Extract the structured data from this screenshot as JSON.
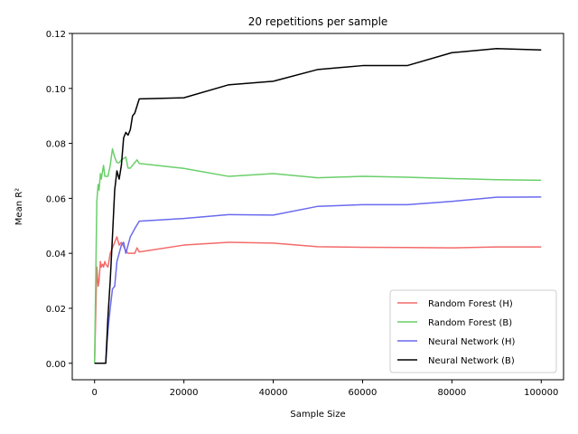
{
  "chart_data": {
    "type": "line",
    "title": "20 repetitions per sample",
    "xlabel": "Sample Size",
    "ylabel": "Mean R²",
    "xlim": [
      -5000,
      105000
    ],
    "ylim": [
      -0.006,
      0.12
    ],
    "xticks": [
      0,
      20000,
      40000,
      60000,
      80000,
      100000
    ],
    "xtick_labels": [
      "0",
      "20000",
      "40000",
      "60000",
      "80000",
      "100000"
    ],
    "yticks": [
      0.0,
      0.02,
      0.04,
      0.06,
      0.08,
      0.1,
      0.12
    ],
    "ytick_labels": [
      "0.00",
      "0.02",
      "0.04",
      "0.06",
      "0.08",
      "0.10",
      "0.12"
    ],
    "grid": false,
    "legend_position": "lower-right",
    "series": [
      {
        "name": "Random Forest (H)",
        "color": "#f46a6a",
        "x": [
          0,
          500,
          800,
          1000,
          1300,
          1500,
          1800,
          2000,
          2300,
          2500,
          3000,
          3500,
          4000,
          4500,
          5000,
          5500,
          6000,
          7000,
          7500,
          8000,
          9000,
          9500,
          10000,
          20000,
          30000,
          40000,
          50000,
          60000,
          70000,
          80000,
          90000,
          100000
        ],
        "y": [
          0.0,
          0.035,
          0.028,
          0.03,
          0.037,
          0.035,
          0.036,
          0.035,
          0.037,
          0.036,
          0.035,
          0.04,
          0.042,
          0.044,
          0.046,
          0.043,
          0.044,
          0.041,
          0.04,
          0.04,
          0.04,
          0.042,
          0.0405,
          0.043,
          0.044,
          0.0437,
          0.0424,
          0.0422,
          0.0421,
          0.042,
          0.0423,
          0.0423
        ]
      },
      {
        "name": "Random Forest (B)",
        "color": "#6acf6a",
        "x": [
          0,
          500,
          800,
          1000,
          1300,
          1500,
          1800,
          2000,
          2300,
          2500,
          3000,
          3500,
          4000,
          4500,
          5000,
          5500,
          6000,
          7000,
          7500,
          8000,
          9000,
          9500,
          10000,
          20000,
          30000,
          40000,
          50000,
          60000,
          70000,
          80000,
          90000,
          100000
        ],
        "y": [
          0.0,
          0.059,
          0.065,
          0.063,
          0.069,
          0.067,
          0.07,
          0.072,
          0.068,
          0.068,
          0.068,
          0.072,
          0.078,
          0.075,
          0.073,
          0.073,
          0.074,
          0.075,
          0.071,
          0.071,
          0.073,
          0.074,
          0.0727,
          0.0709,
          0.068,
          0.069,
          0.0675,
          0.068,
          0.0677,
          0.0672,
          0.0668,
          0.0666
        ]
      },
      {
        "name": "Neural Network (H)",
        "color": "#6a6aef",
        "x": [
          0,
          2000,
          2500,
          3000,
          3500,
          4000,
          4500,
          5000,
          5500,
          6000,
          6500,
          7000,
          7500,
          8000,
          9000,
          10000,
          20000,
          30000,
          40000,
          50000,
          60000,
          70000,
          80000,
          90000,
          100000
        ],
        "y": [
          0.0,
          0.0,
          0.0,
          0.012,
          0.02,
          0.027,
          0.028,
          0.037,
          0.04,
          0.043,
          0.044,
          0.04,
          0.043,
          0.046,
          0.049,
          0.0517,
          0.0527,
          0.0541,
          0.0539,
          0.0571,
          0.0577,
          0.0577,
          0.0589,
          0.0604,
          0.0605
        ]
      },
      {
        "name": "Neural Network (B)",
        "color": "#000000",
        "x": [
          0,
          2000,
          2500,
          3000,
          3500,
          4000,
          4500,
          5000,
          5500,
          6000,
          6500,
          7000,
          7500,
          8000,
          8500,
          9000,
          10000,
          20000,
          30000,
          40000,
          50000,
          60000,
          70000,
          80000,
          90000,
          100000
        ],
        "y": [
          0.0,
          0.0,
          0.0,
          0.017,
          0.03,
          0.046,
          0.063,
          0.07,
          0.067,
          0.072,
          0.082,
          0.084,
          0.083,
          0.085,
          0.09,
          0.091,
          0.0962,
          0.0966,
          0.1013,
          0.1026,
          0.1069,
          0.1083,
          0.1083,
          0.113,
          0.1145,
          0.114
        ]
      }
    ]
  }
}
